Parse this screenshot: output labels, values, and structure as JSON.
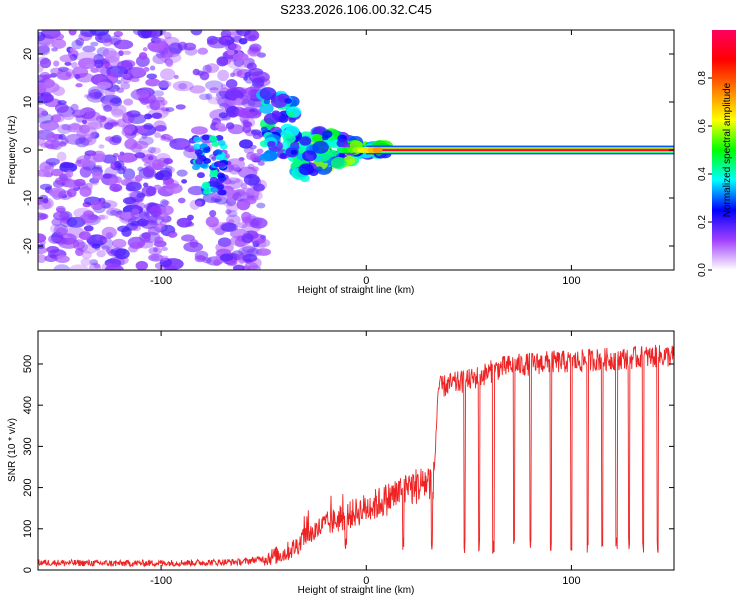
{
  "title": "S233.2026.106.00.32.C45",
  "chart_data": [
    {
      "type": "heatmap",
      "name": "spectrogram",
      "xlabel": "Height of straight line (km)",
      "ylabel": "Frequency (Hz)",
      "xlim": [
        -160,
        150
      ],
      "ylim": [
        -25,
        25
      ],
      "xticks": [
        -100,
        0,
        100
      ],
      "yticks": [
        -20,
        -10,
        0,
        10,
        20
      ],
      "colorbar": {
        "label": "Normalized spectral amplitude",
        "range": [
          0,
          1
        ],
        "ticks": [
          0.0,
          0.2,
          0.4,
          0.6,
          0.8
        ],
        "colors": [
          "#ffffff",
          "#a040ff",
          "#0000ff",
          "#00ffff",
          "#00ff00",
          "#ffff00",
          "#ff8000",
          "#ff0000",
          "#ff0060"
        ]
      },
      "features": {
        "noise_region_km": [
          -160,
          -50
        ],
        "transition_region_km": [
          -50,
          10
        ],
        "carrier_start_km": 0,
        "carrier_frequency_hz": 0,
        "carrier_amplitude": 0.95
      }
    },
    {
      "type": "line",
      "name": "snr",
      "xlabel": "Height of straight line (km)",
      "ylabel": "SNR (10 * v/v)",
      "xlim": [
        -160,
        150
      ],
      "ylim": [
        0,
        580
      ],
      "xticks": [
        -100,
        0,
        100
      ],
      "yticks": [
        0,
        100,
        200,
        300,
        400,
        500
      ],
      "color": "#ee2222",
      "series": [
        {
          "name": "SNR",
          "x": [
            -160,
            -140,
            -120,
            -100,
            -80,
            -60,
            -50,
            -40,
            -35,
            -30,
            -25,
            -20,
            -15,
            -10,
            -5,
            0,
            5,
            10,
            15,
            20,
            25,
            30,
            33,
            35,
            40,
            45,
            50,
            55,
            60,
            65,
            70,
            80,
            90,
            100,
            110,
            120,
            130,
            140,
            150
          ],
          "y": [
            18,
            17,
            16,
            17,
            18,
            20,
            28,
            40,
            55,
            75,
            95,
            110,
            120,
            130,
            140,
            150,
            160,
            172,
            185,
            195,
            205,
            215,
            220,
            440,
            450,
            455,
            460,
            470,
            480,
            490,
            495,
            500,
            505,
            505,
            510,
            512,
            515,
            518,
            520
          ]
        }
      ],
      "dropouts_x": [
        -10,
        18,
        32,
        48,
        55,
        62,
        72,
        80,
        90,
        100,
        108,
        115,
        122,
        128,
        135,
        142
      ]
    }
  ]
}
